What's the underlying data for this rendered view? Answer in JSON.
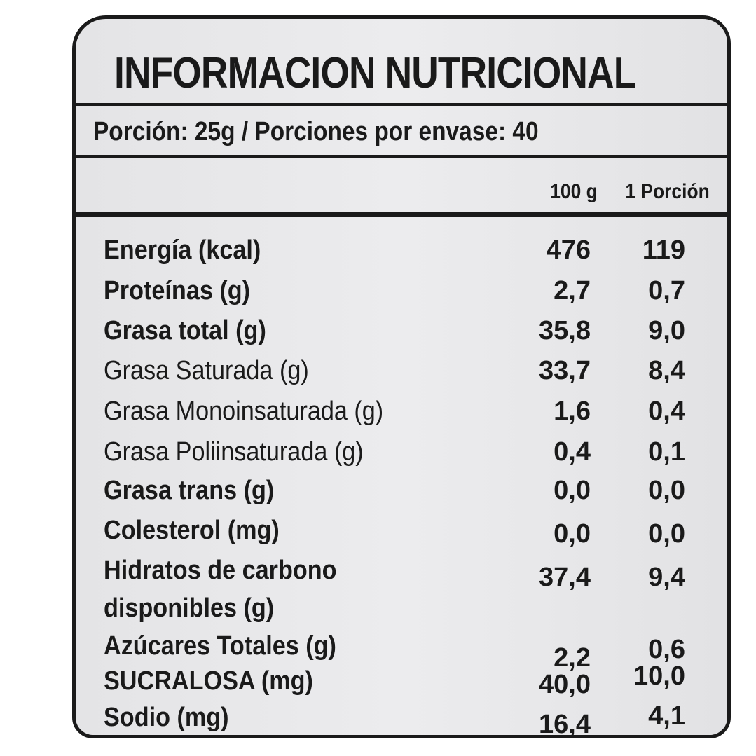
{
  "title": "INFORMACION NUTRICIONAL",
  "portion": "Porción: 25g / Porciones por envase: 40",
  "columns": [
    "100 g",
    "1 Porción"
  ],
  "rows": [
    {
      "name": "Energía (kcal)",
      "per100": "476",
      "perPortion": "119",
      "bold": true
    },
    {
      "name": "Proteínas (g)",
      "per100": "2,7",
      "perPortion": "0,7",
      "bold": true
    },
    {
      "name": "Grasa total (g)",
      "per100": "35,8",
      "perPortion": "9,0",
      "bold": true
    },
    {
      "name": "Grasa Saturada (g)",
      "per100": "33,7",
      "perPortion": "8,4",
      "bold": false
    },
    {
      "name": "Grasa Monoinsaturada (g)",
      "per100": "1,6",
      "perPortion": "0,4",
      "bold": false
    },
    {
      "name": "Grasa Poliinsaturada (g)",
      "per100": "0,4",
      "perPortion": "0,1",
      "bold": false
    },
    {
      "name": "Grasa trans (g)",
      "per100": "0,0",
      "perPortion": "0,0",
      "bold": true
    },
    {
      "name": "Colesterol (mg)",
      "per100": "0,0",
      "perPortion": "0,0",
      "bold": true
    },
    {
      "name": "Hidratos de carbono",
      "name2": "disponibles (g)",
      "per100": "37,4",
      "perPortion": "9,4",
      "bold": true
    },
    {
      "name": "Azúcares Totales (g)",
      "per100": "2,2",
      "perPortion": "0,6",
      "bold": true
    },
    {
      "name": "SUCRALOSA (mg)",
      "per100": "40,0",
      "perPortion": "10,0",
      "bold": true
    },
    {
      "name": "Sodio (mg)",
      "per100": "16,4",
      "perPortion": "4,1",
      "bold": true
    }
  ]
}
